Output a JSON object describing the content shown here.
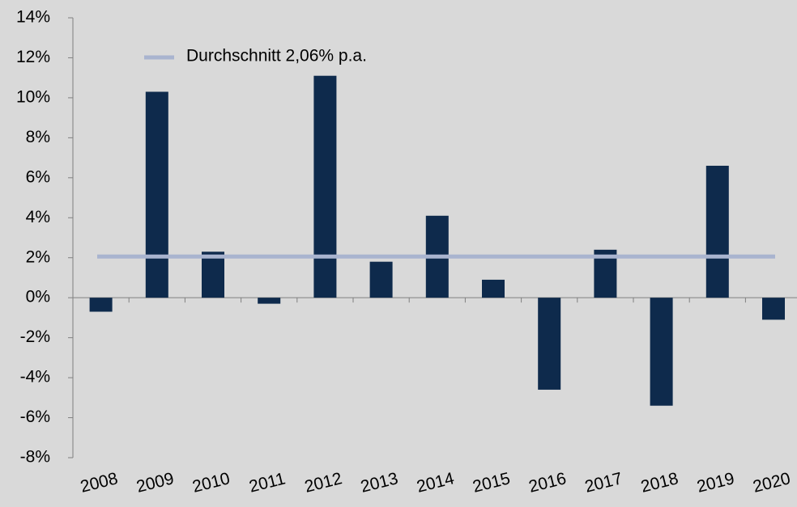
{
  "chart_data": {
    "type": "bar",
    "categories": [
      "2008",
      "2009",
      "2010",
      "2011",
      "2012",
      "2013",
      "2014",
      "2015",
      "2016",
      "2017",
      "2018",
      "2019",
      "2020"
    ],
    "values": [
      -0.7,
      10.3,
      2.3,
      -0.3,
      11.1,
      1.8,
      4.1,
      0.9,
      -4.6,
      2.4,
      -5.4,
      6.6,
      -1.1
    ],
    "color": "#0e2a4c",
    "ylim": [
      -8,
      14
    ],
    "yticks": [
      {
        "value": -8,
        "label": "-8%"
      },
      {
        "value": -6,
        "label": "-6%"
      },
      {
        "value": -4,
        "label": "-4%"
      },
      {
        "value": -2,
        "label": "-2%"
      },
      {
        "value": 0,
        "label": "0%"
      },
      {
        "value": 2,
        "label": "2%"
      },
      {
        "value": 4,
        "label": "4%"
      },
      {
        "value": 6,
        "label": "6%"
      },
      {
        "value": 8,
        "label": "8%"
      },
      {
        "value": 10,
        "label": "10%"
      },
      {
        "value": 12,
        "label": "12%"
      },
      {
        "value": 14,
        "label": "14%"
      }
    ],
    "average": {
      "name": "Durchschnitt 2,06% p.a.",
      "value": 2.06,
      "color": "#a9b4cf"
    }
  }
}
